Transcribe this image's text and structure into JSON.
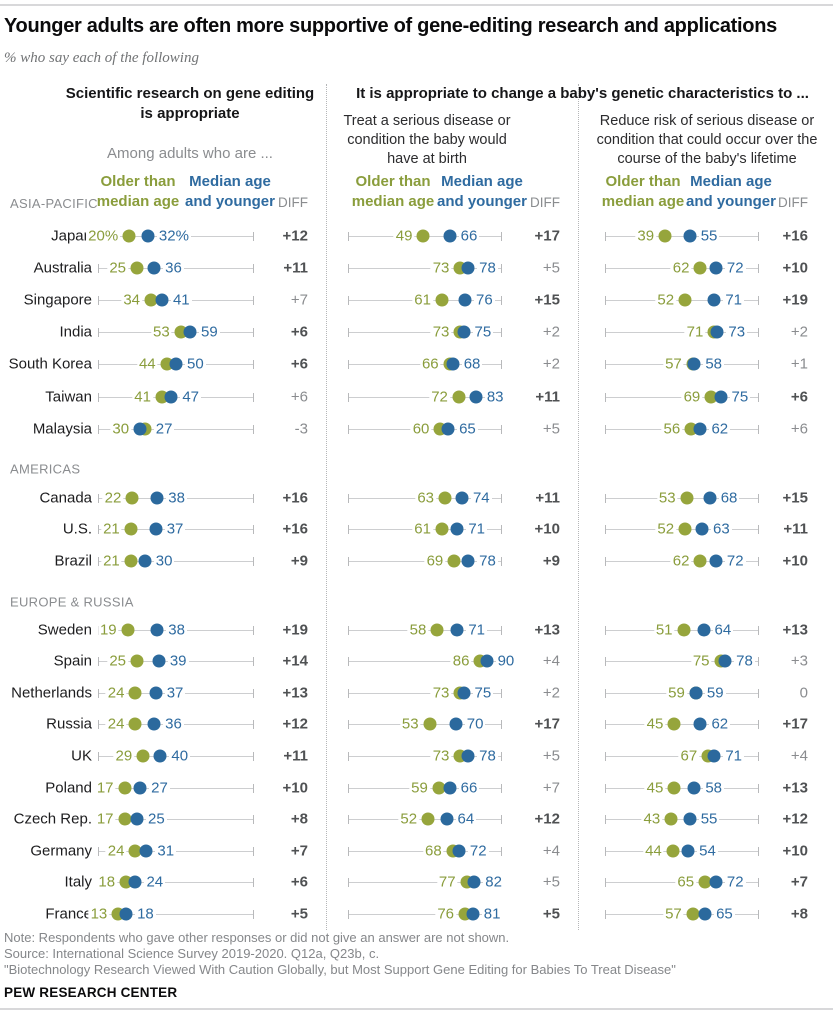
{
  "title": "Younger adults are often more supportive of gene-editing research and applications",
  "subtitle": "% who say each of the following",
  "panels": {
    "research": {
      "header": "Scientific research on gene editing is appropriate",
      "subheader": "Among adults who are ..."
    },
    "babies": {
      "header": "It is appropriate to change a baby's genetic characteristics to ..."
    },
    "treat": {
      "subheader": "Treat a serious disease or condition the baby would have at birth"
    },
    "reduce": {
      "subheader": "Reduce risk of serious disease or condition that could occur over the course of the baby's lifetime"
    }
  },
  "legend": {
    "older": "Older than median age",
    "younger": "Median age and younger",
    "diff": "DIFF"
  },
  "colors": {
    "older_dot": "#96a53c",
    "younger_dot": "#2b699d",
    "older_text": "#8a9d3c",
    "younger_text": "#2f6ba0",
    "diff_sig": "#4f5153",
    "diff_ns": "#8a8c8f",
    "track": "#cdced0"
  },
  "chart_data": {
    "type": "scatter",
    "subtype": "dumbbell-dot-plot",
    "xlim": [
      0,
      100
    ],
    "series_labels": {
      "older": "Older than median age",
      "younger": "Median age and younger"
    },
    "measures": [
      {
        "key": "research",
        "label": "Scientific research on gene editing is appropriate"
      },
      {
        "key": "treat",
        "label": "Treat a serious disease or condition the baby would have at birth"
      },
      {
        "key": "reduce",
        "label": "Reduce risk of serious disease or condition that could occur over the course of the baby's lifetime"
      }
    ],
    "regions": [
      {
        "label": "ASIA-PACIFIC",
        "rows": [
          {
            "country": "Japan",
            "research": {
              "older": 20,
              "younger": 32,
              "suffix": "%",
              "diff": "+12",
              "sig": true
            },
            "treat": {
              "older": 49,
              "younger": 66,
              "diff": "+17",
              "sig": true
            },
            "reduce": {
              "older": 39,
              "younger": 55,
              "diff": "+16",
              "sig": true
            }
          },
          {
            "country": "Australia",
            "research": {
              "older": 25,
              "younger": 36,
              "diff": "+11",
              "sig": true
            },
            "treat": {
              "older": 73,
              "younger": 78,
              "diff": "+5",
              "sig": false
            },
            "reduce": {
              "older": 62,
              "younger": 72,
              "diff": "+10",
              "sig": true
            }
          },
          {
            "country": "Singapore",
            "research": {
              "older": 34,
              "younger": 41,
              "diff": "+7",
              "sig": false
            },
            "treat": {
              "older": 61,
              "younger": 76,
              "diff": "+15",
              "sig": true
            },
            "reduce": {
              "older": 52,
              "younger": 71,
              "diff": "+19",
              "sig": true
            }
          },
          {
            "country": "India",
            "research": {
              "older": 53,
              "younger": 59,
              "diff": "+6",
              "sig": true
            },
            "treat": {
              "older": 73,
              "younger": 75,
              "diff": "+2",
              "sig": false
            },
            "reduce": {
              "older": 71,
              "younger": 73,
              "diff": "+2",
              "sig": false
            }
          },
          {
            "country": "South Korea",
            "research": {
              "older": 44,
              "younger": 50,
              "diff": "+6",
              "sig": true
            },
            "treat": {
              "older": 66,
              "younger": 68,
              "diff": "+2",
              "sig": false
            },
            "reduce": {
              "older": 57,
              "younger": 58,
              "diff": "+1",
              "sig": false
            }
          },
          {
            "country": "Taiwan",
            "research": {
              "older": 41,
              "younger": 47,
              "diff": "+6",
              "sig": false
            },
            "treat": {
              "older": 72,
              "younger": 83,
              "diff": "+11",
              "sig": true
            },
            "reduce": {
              "older": 69,
              "younger": 75,
              "diff": "+6",
              "sig": true
            }
          },
          {
            "country": "Malaysia",
            "research": {
              "older": 30,
              "younger": 27,
              "diff": "-3",
              "sig": false
            },
            "treat": {
              "older": 60,
              "younger": 65,
              "diff": "+5",
              "sig": false
            },
            "reduce": {
              "older": 56,
              "younger": 62,
              "diff": "+6",
              "sig": false
            }
          }
        ]
      },
      {
        "label": "AMERICAS",
        "rows": [
          {
            "country": "Canada",
            "research": {
              "older": 22,
              "younger": 38,
              "diff": "+16",
              "sig": true
            },
            "treat": {
              "older": 63,
              "younger": 74,
              "diff": "+11",
              "sig": true
            },
            "reduce": {
              "older": 53,
              "younger": 68,
              "diff": "+15",
              "sig": true
            }
          },
          {
            "country": "U.S.",
            "research": {
              "older": 21,
              "younger": 37,
              "diff": "+16",
              "sig": true
            },
            "treat": {
              "older": 61,
              "younger": 71,
              "diff": "+10",
              "sig": true
            },
            "reduce": {
              "older": 52,
              "younger": 63,
              "diff": "+11",
              "sig": true
            }
          },
          {
            "country": "Brazil",
            "research": {
              "older": 21,
              "younger": 30,
              "diff": "+9",
              "sig": true
            },
            "treat": {
              "older": 69,
              "younger": 78,
              "diff": "+9",
              "sig": true
            },
            "reduce": {
              "older": 62,
              "younger": 72,
              "diff": "+10",
              "sig": true
            }
          }
        ]
      },
      {
        "label": "EUROPE & RUSSIA",
        "rows": [
          {
            "country": "Sweden",
            "research": {
              "older": 19,
              "younger": 38,
              "diff": "+19",
              "sig": true
            },
            "treat": {
              "older": 58,
              "younger": 71,
              "diff": "+13",
              "sig": true
            },
            "reduce": {
              "older": 51,
              "younger": 64,
              "diff": "+13",
              "sig": true
            }
          },
          {
            "country": "Spain",
            "research": {
              "older": 25,
              "younger": 39,
              "diff": "+14",
              "sig": true
            },
            "treat": {
              "older": 86,
              "younger": 90,
              "diff": "+4",
              "sig": false
            },
            "reduce": {
              "older": 75,
              "younger": 78,
              "diff": "+3",
              "sig": false
            }
          },
          {
            "country": "Netherlands",
            "research": {
              "older": 24,
              "younger": 37,
              "diff": "+13",
              "sig": true
            },
            "treat": {
              "older": 73,
              "younger": 75,
              "diff": "+2",
              "sig": false
            },
            "reduce": {
              "older": 59,
              "younger": 59,
              "diff": "0",
              "sig": false
            }
          },
          {
            "country": "Russia",
            "research": {
              "older": 24,
              "younger": 36,
              "diff": "+12",
              "sig": true
            },
            "treat": {
              "older": 53,
              "younger": 70,
              "diff": "+17",
              "sig": true
            },
            "reduce": {
              "older": 45,
              "younger": 62,
              "diff": "+17",
              "sig": true
            }
          },
          {
            "country": "UK",
            "research": {
              "older": 29,
              "younger": 40,
              "diff": "+11",
              "sig": true
            },
            "treat": {
              "older": 73,
              "younger": 78,
              "diff": "+5",
              "sig": false
            },
            "reduce": {
              "older": 67,
              "younger": 71,
              "diff": "+4",
              "sig": false
            }
          },
          {
            "country": "Poland",
            "research": {
              "older": 17,
              "younger": 27,
              "diff": "+10",
              "sig": true
            },
            "treat": {
              "older": 59,
              "younger": 66,
              "diff": "+7",
              "sig": false
            },
            "reduce": {
              "older": 45,
              "younger": 58,
              "diff": "+13",
              "sig": true
            }
          },
          {
            "country": "Czech Rep.",
            "research": {
              "older": 17,
              "younger": 25,
              "diff": "+8",
              "sig": true
            },
            "treat": {
              "older": 52,
              "younger": 64,
              "diff": "+12",
              "sig": true
            },
            "reduce": {
              "older": 43,
              "younger": 55,
              "diff": "+12",
              "sig": true
            }
          },
          {
            "country": "Germany",
            "research": {
              "older": 24,
              "younger": 31,
              "diff": "+7",
              "sig": true
            },
            "treat": {
              "older": 68,
              "younger": 72,
              "diff": "+4",
              "sig": false
            },
            "reduce": {
              "older": 44,
              "younger": 54,
              "diff": "+10",
              "sig": true
            }
          },
          {
            "country": "Italy",
            "research": {
              "older": 18,
              "younger": 24,
              "diff": "+6",
              "sig": true
            },
            "treat": {
              "older": 77,
              "younger": 82,
              "diff": "+5",
              "sig": false
            },
            "reduce": {
              "older": 65,
              "younger": 72,
              "diff": "+7",
              "sig": true
            }
          },
          {
            "country": "France",
            "research": {
              "older": 13,
              "younger": 18,
              "diff": "+5",
              "sig": true
            },
            "treat": {
              "older": 76,
              "younger": 81,
              "diff": "+5",
              "sig": true
            },
            "reduce": {
              "older": 57,
              "younger": 65,
              "diff": "+8",
              "sig": true
            }
          }
        ]
      }
    ]
  },
  "notes": [
    "Note: Respondents who gave other responses or did not give an answer are not shown.",
    "Source: International Science Survey 2019-2020. Q12a, Q23b, c.",
    "\"Biotechnology Research Viewed With Caution Globally, but Most Support Gene Editing for Babies To Treat Disease\""
  ],
  "brand": "PEW RESEARCH CENTER"
}
